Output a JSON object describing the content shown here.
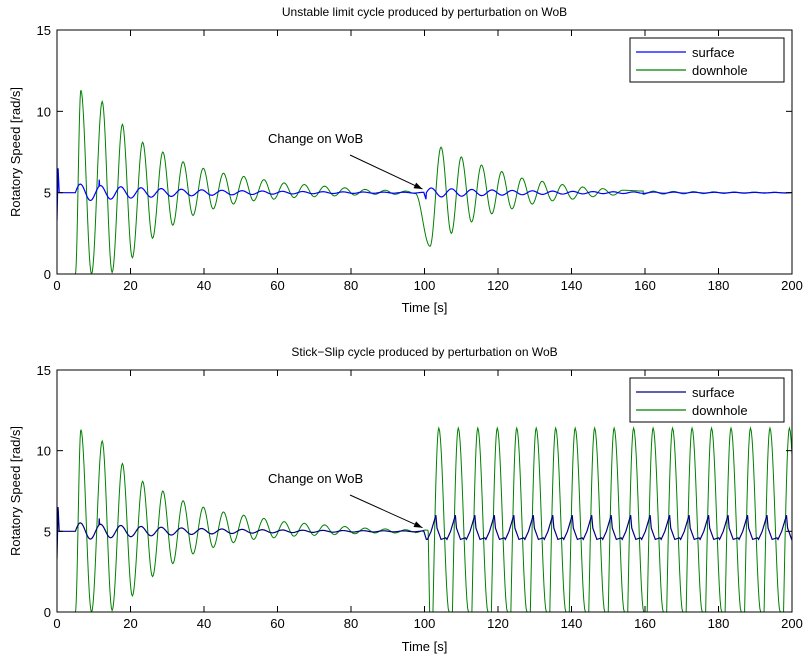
{
  "chart_data": [
    {
      "type": "line",
      "title": "Unstable limit cycle produced by perturbation on WoB",
      "xlabel": "Time [s]",
      "ylabel": "Rotatory Speed [rad/s]",
      "xlim": [
        0,
        200
      ],
      "ylim": [
        0,
        15
      ],
      "xticks": [
        "0",
        "20",
        "40",
        "60",
        "80",
        "100",
        "120",
        "140",
        "160",
        "180",
        "200"
      ],
      "yticks": [
        "0",
        "5",
        "10",
        "15"
      ],
      "grid": false,
      "legend_position": "top-right",
      "annotation": {
        "text": "Change on WoB",
        "arrow_to": [
          100,
          5.1
        ]
      },
      "series": [
        {
          "name": "surface",
          "color": "#0000ff",
          "description_points": {
            "x": [
              0,
              0.5,
              5,
              6,
              8,
              11,
              12,
              15,
              17,
              21,
              30,
              50,
              100,
              101,
              104,
              110,
              130,
              200
            ],
            "y": [
              3.3,
              5.0,
              5.0,
              5.6,
              4.6,
              5.8,
              5.5,
              4.7,
              5.4,
              4.8,
              5.2,
              5.0,
              5.0,
              4.6,
              5.3,
              4.9,
              5.0,
              5.0
            ]
          }
        },
        {
          "name": "downhole",
          "color": "#008000",
          "peaks": {
            "x": [
              6.5,
              12.3,
              17.8,
              23.3,
              28.8,
              34.3,
              39.8,
              45.3,
              50.8,
              56.3,
              61.8,
              67.3,
              72.8,
              78.3,
              83.8,
              89.3,
              94.8,
              104.5,
              110,
              115.5,
              121,
              126.5,
              132,
              137.5,
              143,
              148.5,
              154,
              159.5
            ],
            "y": [
              11.3,
              10.6,
              9.2,
              8.1,
              7.5,
              6.9,
              6.5,
              6.2,
              6.0,
              5.8,
              5.6,
              5.5,
              5.4,
              5.3,
              5.2,
              5.15,
              5.1,
              7.8,
              7.2,
              6.7,
              6.3,
              5.9,
              5.7,
              5.5,
              5.35,
              5.25,
              5.15,
              5.1
            ]
          },
          "troughs": {
            "x": [
              5,
              9.4,
              15,
              20.5,
              26,
              31.5,
              37,
              42.5,
              48,
              53.5,
              59,
              64.5,
              70,
              75.5,
              81,
              86.5,
              92,
              97.5,
              101.5,
              107.3,
              112.8,
              118.3,
              123.8,
              129.3,
              134.8,
              140.3,
              145.8,
              151.3
            ],
            "y": [
              0,
              0,
              0.1,
              1.0,
              2.2,
              3.0,
              3.6,
              4.0,
              4.3,
              4.5,
              4.6,
              4.7,
              4.75,
              4.8,
              4.85,
              4.9,
              4.9,
              4.95,
              1.7,
              2.5,
              3.2,
              3.7,
              4.0,
              4.3,
              4.5,
              4.6,
              4.75,
              4.85
            ]
          }
        }
      ]
    },
    {
      "type": "line",
      "title": "Stick−Slip cycle produced by perturbation on WoB",
      "xlabel": "Time [s]",
      "ylabel": "Rotatory Speed [rad/s]",
      "xlim": [
        0,
        200
      ],
      "ylim": [
        0,
        15
      ],
      "xticks": [
        "0",
        "20",
        "40",
        "60",
        "80",
        "100",
        "120",
        "140",
        "160",
        "180",
        "200"
      ],
      "yticks": [
        "0",
        "5",
        "10",
        "15"
      ],
      "grid": false,
      "legend_position": "top-right",
      "annotation": {
        "text": "Change on WoB",
        "arrow_to": [
          100,
          5.1
        ]
      },
      "series": [
        {
          "name": "surface",
          "color": "#000080",
          "description_points": {
            "x": [
              0,
              0.5,
              5,
              6,
              8,
              11,
              12,
              15,
              17,
              21,
              30,
              50,
              100,
              101,
              104,
              106,
              110,
              112,
              200
            ],
            "y": [
              3.3,
              5.0,
              5.0,
              5.6,
              4.6,
              5.8,
              5.5,
              4.7,
              5.4,
              4.8,
              5.2,
              5.0,
              5.0,
              4.5,
              5.9,
              4.5,
              5.9,
              4.5,
              5.0
            ]
          },
          "stick_slip": {
            "start": 101,
            "period": 5.3,
            "max": 6.0,
            "min": 4.5
          }
        },
        {
          "name": "downhole",
          "color": "#008000",
          "peaks": {
            "x": [
              6.5,
              12.3,
              17.8,
              23.3,
              28.8,
              34.3,
              39.8,
              45.3,
              50.8,
              56.3,
              61.8,
              67.3,
              72.8,
              78.3,
              83.8,
              89.3,
              94.8
            ],
            "y": [
              11.3,
              10.6,
              9.2,
              8.1,
              7.5,
              6.9,
              6.5,
              6.2,
              6.0,
              5.8,
              5.6,
              5.5,
              5.4,
              5.3,
              5.2,
              5.15,
              5.1
            ]
          },
          "troughs": {
            "x": [
              5,
              9.4,
              15,
              20.5,
              26,
              31.5,
              37,
              42.5,
              48,
              53.5,
              59,
              64.5,
              70,
              75.5,
              81,
              86.5,
              92,
              97.5
            ],
            "y": [
              0,
              0,
              0.1,
              1.0,
              2.2,
              3.0,
              3.6,
              4.0,
              4.3,
              4.5,
              4.6,
              4.7,
              4.75,
              4.8,
              4.85,
              4.9,
              4.9,
              4.95
            ]
          },
          "stick_slip": {
            "start": 101,
            "period": 5.3,
            "max": 11.4,
            "min": 0
          }
        }
      ]
    }
  ]
}
